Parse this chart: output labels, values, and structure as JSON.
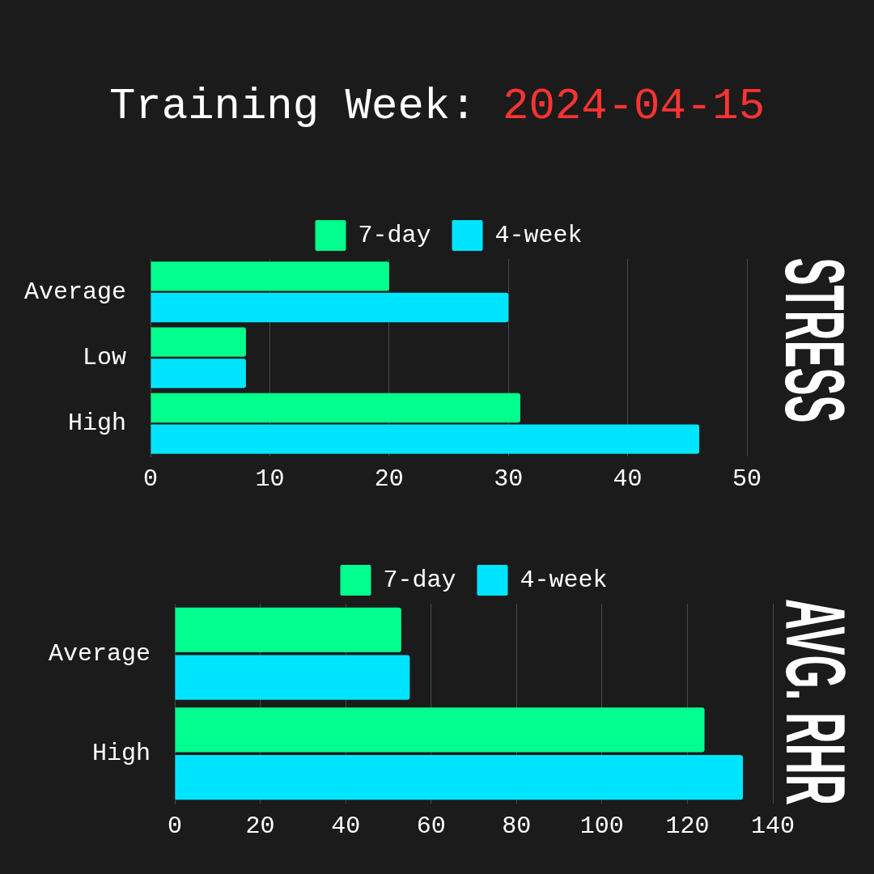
{
  "chart_data": [
    {
      "type": "bar",
      "orientation": "horizontal",
      "title": "Training Week: 2024-04-15",
      "ylabel": "STRESS",
      "categories": [
        "Average",
        "Low",
        "High"
      ],
      "series": [
        {
          "name": "7-day",
          "color": "#00ff8c",
          "values": [
            20,
            8,
            31
          ]
        },
        {
          "name": "4-week",
          "color": "#00e5ff",
          "values": [
            30,
            8,
            46
          ]
        }
      ],
      "xlim": [
        0,
        50
      ],
      "xticks": [
        0,
        10,
        20,
        30,
        40,
        50
      ],
      "grid": "x",
      "legend": "top"
    },
    {
      "type": "bar",
      "orientation": "horizontal",
      "ylabel": "AVG. RHR",
      "categories": [
        "Average",
        "High"
      ],
      "series": [
        {
          "name": "7-day",
          "color": "#00ff8c",
          "values": [
            53,
            124
          ]
        },
        {
          "name": "4-week",
          "color": "#00e5ff",
          "values": [
            55,
            133
          ]
        }
      ],
      "xlim": [
        0,
        140
      ],
      "xticks": [
        0,
        20,
        40,
        60,
        80,
        100,
        120,
        140
      ],
      "grid": "x",
      "legend": "top"
    }
  ]
}
